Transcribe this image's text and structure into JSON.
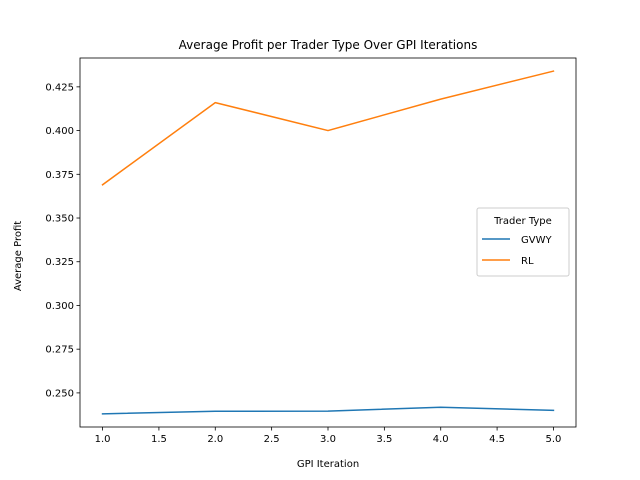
{
  "chart_data": {
    "type": "line",
    "title": "Average Profit per Trader Type Over GPI Iterations",
    "xlabel": "GPI Iteration",
    "ylabel": "Average Profit",
    "xlim": [
      0.8,
      5.2
    ],
    "ylim": [
      0.2305,
      0.4415
    ],
    "x_ticks": [
      "1.0",
      "1.5",
      "2.0",
      "2.5",
      "3.0",
      "3.5",
      "4.0",
      "4.5",
      "5.0"
    ],
    "y_ticks": [
      "0.250",
      "0.275",
      "0.300",
      "0.325",
      "0.350",
      "0.375",
      "0.400",
      "0.425"
    ],
    "x": [
      1,
      2,
      3,
      4,
      5
    ],
    "series": [
      {
        "name": "GVWY",
        "color": "#1f77b4",
        "values": [
          0.238,
          0.2395,
          0.2396,
          0.2418,
          0.24
        ]
      },
      {
        "name": "RL",
        "color": "#ff7f0e",
        "values": [
          0.369,
          0.416,
          0.4,
          0.418,
          0.434
        ]
      }
    ],
    "legend": {
      "title": "Trader Type",
      "placement": "center-right"
    },
    "grid": false
  }
}
